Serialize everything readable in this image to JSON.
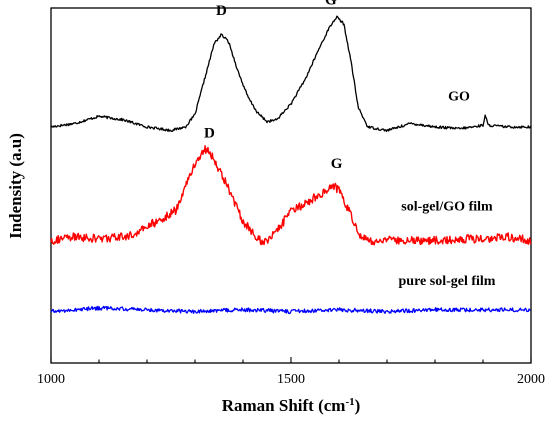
{
  "chart_data": {
    "type": "line",
    "xlabel": "Raman Shift (cm",
    "xlabel_sup": "-1",
    "xlabel_tail": ")",
    "ylabel": "Indensity (a.u)",
    "xlim": [
      1000,
      2000
    ],
    "xticks": [
      "1000",
      "1500",
      "2000"
    ],
    "ylim": [
      0,
      100
    ],
    "grid": false,
    "legend": "inline labels at right of each trace",
    "series": [
      {
        "name": "GO",
        "color": "#000000",
        "x": [
          1000,
          1050,
          1100,
          1150,
          1200,
          1250,
          1280,
          1300,
          1320,
          1340,
          1355,
          1370,
          1390,
          1410,
          1430,
          1450,
          1470,
          1500,
          1530,
          1560,
          1580,
          1595,
          1610,
          1625,
          1640,
          1660,
          1700,
          1750,
          1800,
          1850,
          1880,
          1900,
          1905,
          1910,
          1950,
          2000
        ],
        "y": [
          66.5,
          67.5,
          69.5,
          68.5,
          66.5,
          65.5,
          66.5,
          70,
          80,
          90,
          92.5,
          90.5,
          82,
          75,
          70.5,
          68,
          68.5,
          73,
          80,
          89,
          94.5,
          97.5,
          95.5,
          85,
          72,
          66.5,
          65.5,
          67.5,
          66.5,
          66,
          66.5,
          67,
          70,
          67,
          66.5,
          66.5
        ]
      },
      {
        "name": "sol-gel/GO film",
        "color": "#ff0000",
        "x": [
          1000,
          1050,
          1100,
          1150,
          1180,
          1200,
          1230,
          1260,
          1280,
          1300,
          1320,
          1330,
          1340,
          1360,
          1380,
          1400,
          1420,
          1440,
          1460,
          1480,
          1500,
          1530,
          1560,
          1580,
          1590,
          1600,
          1620,
          1640,
          1660,
          1700,
          1750,
          1800,
          1850,
          1900,
          1950,
          2000
        ],
        "y": [
          34.5,
          35.5,
          35,
          35.5,
          36.5,
          38.5,
          40.5,
          43,
          50,
          56,
          60.5,
          59.5,
          57,
          52,
          46,
          40,
          36.5,
          34,
          35.5,
          39,
          42.5,
          45,
          47.5,
          49.5,
          50,
          48.5,
          43,
          36.5,
          34.5,
          34.5,
          34.5,
          34.5,
          35,
          35,
          35.5,
          34.5
        ]
      },
      {
        "name": "pure sol-gel film",
        "color": "#0000ff",
        "x": [
          1000,
          1100,
          1200,
          1300,
          1400,
          1500,
          1600,
          1700,
          1800,
          1900,
          2000
        ],
        "y": [
          14.5,
          15.5,
          15,
          14.5,
          15,
          14.5,
          15,
          14.5,
          15,
          15,
          15
        ]
      }
    ],
    "annotations": [
      {
        "text": "D",
        "x": 1355,
        "y": 98
      },
      {
        "text": "G",
        "x": 1583,
        "y": 101
      },
      {
        "text": "D",
        "x": 1330,
        "y": 63.5
      },
      {
        "text": "G",
        "x": 1595,
        "y": 55
      },
      {
        "text": "GO",
        "x": 1850,
        "y": 74
      },
      {
        "text": "sol-gel/GO film",
        "x": 1825,
        "y": 43
      },
      {
        "text": "pure sol-gel film",
        "x": 1825,
        "y": 22
      }
    ]
  }
}
